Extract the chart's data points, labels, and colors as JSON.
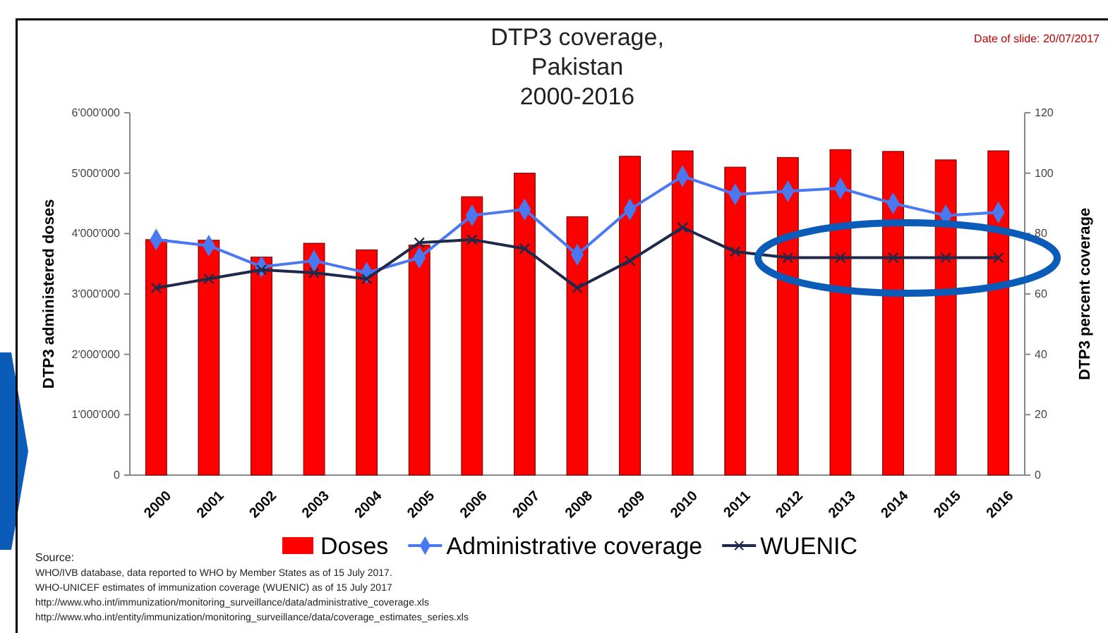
{
  "chart_data": {
    "type": "bar",
    "title": "DTP3 coverage,\nPakistan\n2000-2016",
    "ylabel": "DTP3 administered doses",
    "y2label": "DTP3 percent coverage",
    "categories": [
      "2000",
      "2001",
      "2002",
      "2003",
      "2004",
      "2005",
      "2006",
      "2007",
      "2008",
      "2009",
      "2010",
      "2011",
      "2012",
      "2013",
      "2014",
      "2015",
      "2016"
    ],
    "series": [
      {
        "name": "Doses",
        "color": "#ff0000",
        "values": [
          3900000,
          3890000,
          3610000,
          3840000,
          3730000,
          3810000,
          4610000,
          5000000,
          4280000,
          5280000,
          5370000,
          5100000,
          5260000,
          5390000,
          5360000,
          5220000,
          5370000
        ]
      },
      {
        "name": "Administrative coverage",
        "type": "line",
        "axis": "y2",
        "color": "#4a78f0",
        "marker": "diamond",
        "values": [
          78,
          76,
          69,
          71,
          67,
          72,
          86,
          88,
          73,
          88,
          99,
          93,
          94,
          95,
          90,
          86,
          87
        ]
      },
      {
        "name": "WUENIC",
        "type": "line",
        "axis": "y2",
        "color": "#1f2a4a",
        "marker": "cross",
        "values": [
          62,
          65,
          68,
          67,
          65,
          77,
          78,
          75,
          62,
          71,
          82,
          74,
          72,
          72,
          72,
          72,
          72
        ]
      }
    ],
    "ylim": [
      0,
      6000000
    ],
    "yticks": [
      {
        "value": 0,
        "label": "0"
      },
      {
        "value": 1000000,
        "label": "1'000'000"
      },
      {
        "value": 2000000,
        "label": "2'000'000"
      },
      {
        "value": 3000000,
        "label": "3'000'000"
      },
      {
        "value": 4000000,
        "label": "4'000'000"
      },
      {
        "value": 5000000,
        "label": "5'000'000"
      },
      {
        "value": 6000000,
        "label": "6'000'000"
      }
    ],
    "y2lim": [
      0,
      120
    ],
    "y2ticks": [
      0,
      20,
      40,
      60,
      80,
      100,
      120
    ],
    "legend": "bottom",
    "grid": false,
    "annotations": [
      "Date of slide: 20/07/2017",
      "Source:",
      "WHO/IVB database, data reported to WHO by Member States as of 15 July 2017.",
      "WHO-UNICEF estimates of immunization coverage (WUENIC) as of 15 July 2017",
      "http://www.who.int/immunization/monitoring_surveillance/data/administrative_coverage.xls",
      "http://www.who.int/entity/immunization/monitoring_surveillance/data/coverage_estimates_series.xls"
    ]
  }
}
